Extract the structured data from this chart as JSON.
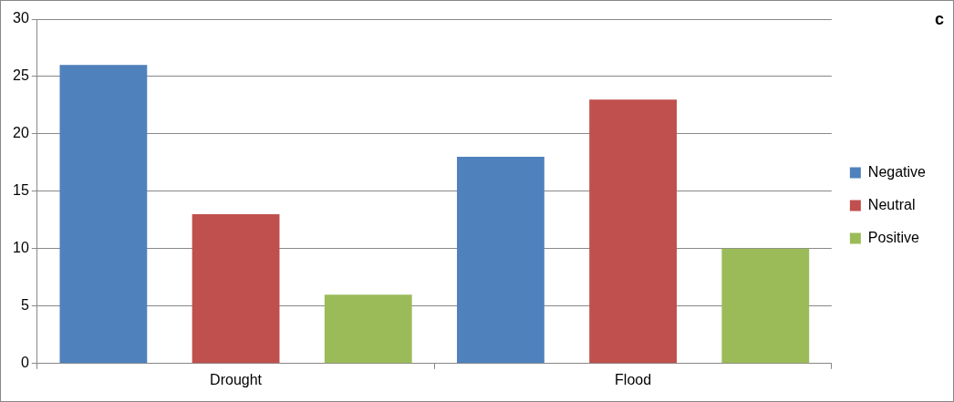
{
  "chart_data": {
    "type": "bar",
    "categories": [
      "Drought",
      "Flood"
    ],
    "series": [
      {
        "name": "Negative",
        "color": "#4f81bd",
        "values": [
          26,
          18
        ]
      },
      {
        "name": "Neutral",
        "color": "#c0504d",
        "values": [
          13,
          23
        ]
      },
      {
        "name": "Positive",
        "color": "#9bbb59",
        "values": [
          6,
          10
        ]
      }
    ],
    "ylim": [
      0,
      30
    ],
    "yticks": [
      0,
      5,
      10,
      15,
      20,
      25,
      30
    ],
    "grid": "y",
    "legend": "right",
    "annotations": [
      "c"
    ]
  }
}
